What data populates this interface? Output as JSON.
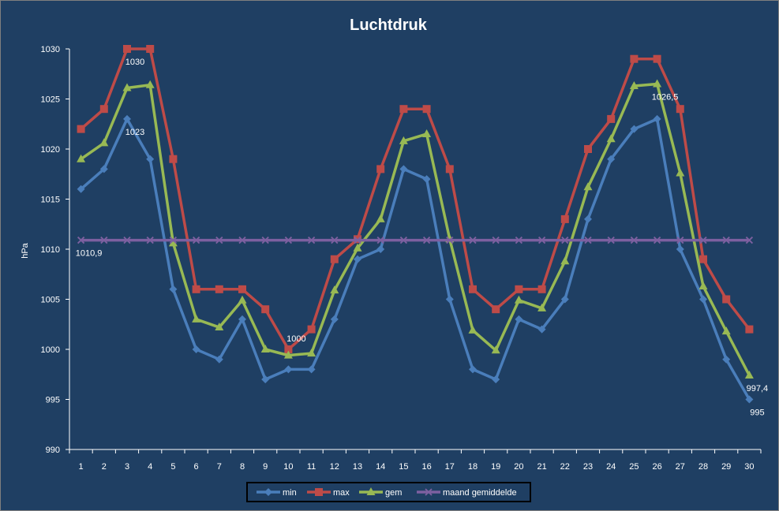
{
  "chart_data": {
    "type": "line",
    "title": "Luchtdruk",
    "xlabel": "",
    "ylabel": "hPa",
    "ylim": [
      990,
      1030
    ],
    "yticks": [
      990,
      995,
      1000,
      1005,
      1010,
      1015,
      1020,
      1025,
      1030
    ],
    "categories": [
      "1",
      "2",
      "3",
      "4",
      "5",
      "6",
      "7",
      "8",
      "9",
      "10",
      "11",
      "12",
      "13",
      "14",
      "15",
      "16",
      "17",
      "18",
      "19",
      "20",
      "21",
      "22",
      "23",
      "24",
      "25",
      "26",
      "27",
      "28",
      "29",
      "30"
    ],
    "grid": false,
    "legend": "bottom",
    "series": [
      {
        "name": "min",
        "color": "#4a7ebb",
        "marker": "diamond",
        "values": [
          1016,
          1018,
          1023,
          1019,
          1006,
          1000,
          999,
          1003,
          997,
          998,
          998,
          1003,
          1009,
          1010,
          1018,
          1017,
          1005,
          998,
          997,
          1003,
          1002,
          1005,
          1013,
          1019,
          1022,
          1023,
          1010,
          1005,
          999,
          995
        ]
      },
      {
        "name": "max",
        "color": "#be4b48",
        "marker": "square",
        "values": [
          1022,
          1024,
          1030,
          1030,
          1019,
          1006,
          1006,
          1006,
          1004,
          1000,
          1002,
          1009,
          1011,
          1018,
          1024,
          1024,
          1018,
          1006,
          1004,
          1006,
          1006,
          1013,
          1020,
          1023,
          1029,
          1029,
          1024,
          1009,
          1005,
          1002
        ]
      },
      {
        "name": "gem",
        "color": "#98b954",
        "marker": "triangle",
        "values": [
          1019,
          1020.6,
          1026.1,
          1026.4,
          1010.6,
          1003,
          1002.2,
          1004.9,
          1000,
          999.4,
          999.6,
          1005.9,
          1010.1,
          1013,
          1020.8,
          1021.5,
          1011,
          1001.9,
          999.9,
          1004.9,
          1004.1,
          1008.8,
          1016.2,
          1021,
          1026.3,
          1026.5,
          1017.6,
          1006.3,
          1001.8,
          997.4
        ]
      },
      {
        "name": "maand gemiddelde",
        "color": "#7d60a0",
        "marker": "x",
        "values": [
          1010.9,
          1010.9,
          1010.9,
          1010.9,
          1010.9,
          1010.9,
          1010.9,
          1010.9,
          1010.9,
          1010.9,
          1010.9,
          1010.9,
          1010.9,
          1010.9,
          1010.9,
          1010.9,
          1010.9,
          1010.9,
          1010.9,
          1010.9,
          1010.9,
          1010.9,
          1010.9,
          1010.9,
          1010.9,
          1010.9,
          1010.9,
          1010.9,
          1010.9,
          1010.9
        ]
      }
    ],
    "annotations": [
      {
        "text": "1030",
        "series": "max",
        "index": 2,
        "pos": "below"
      },
      {
        "text": "1023",
        "series": "min",
        "index": 2,
        "pos": "below"
      },
      {
        "text": "1010,9",
        "series": "maand gemiddelde",
        "index": 0,
        "pos": "below"
      },
      {
        "text": "1000",
        "series": "max",
        "index": 9,
        "pos": "above"
      },
      {
        "text": "1026,5",
        "series": "gem",
        "index": 25,
        "pos": "below"
      },
      {
        "text": "997,4",
        "series": "gem",
        "index": 29,
        "pos": "below"
      },
      {
        "text": "995",
        "series": "min",
        "index": 29,
        "pos": "below"
      }
    ]
  }
}
